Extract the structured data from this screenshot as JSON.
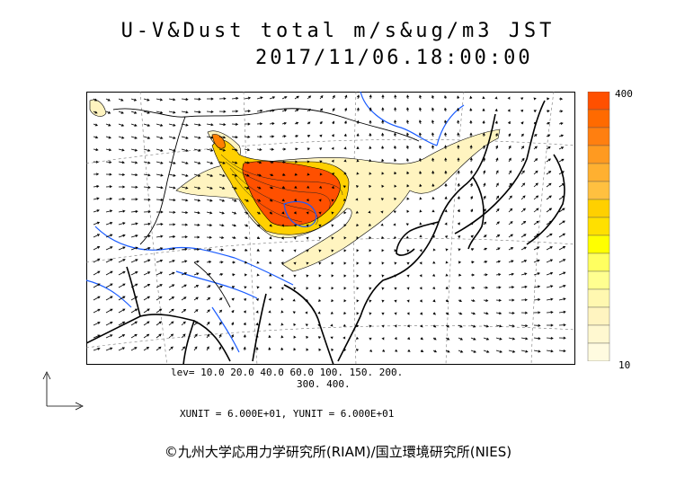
{
  "title": {
    "line1": "U-V&Dust total m/s&ug/m3 JST",
    "line2": "2017/11/06.18:00:00"
  },
  "colorbar": {
    "max_label": "400",
    "min_label": "10",
    "colors": [
      "#ff5000",
      "#ff6a00",
      "#ff7f10",
      "#ff9a20",
      "#ffb030",
      "#ffc040",
      "#ffd000",
      "#ffe000",
      "#ffff00",
      "#ffff60",
      "#ffff90",
      "#fff8b0",
      "#fff4c0",
      "#fff8d0",
      "#fffbe0"
    ]
  },
  "levels": {
    "line1": "lev= 10.0 20.0 40.0 60.0 100. 150. 200.",
    "line2": "300. 400."
  },
  "units": "XUNIT = 6.000E+01, YUNIT = 6.000E+01",
  "copyright": "©九州大学応用力学研究所(RIAM)/国立環境研究所(NIES)",
  "map_colors": {
    "land_line": "#000000",
    "river": "#1a5cff",
    "dust_low": "#fff4c0",
    "dust_mid": "#ffd000",
    "dust_high": "#ff5000"
  }
}
